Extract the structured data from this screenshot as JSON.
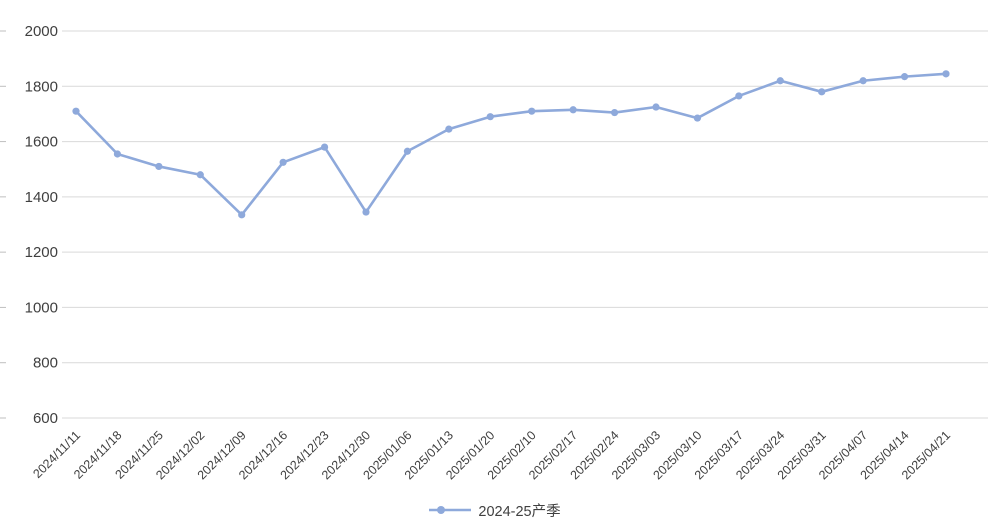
{
  "chart_data": {
    "type": "line",
    "title": "",
    "xlabel": "",
    "ylabel": "",
    "categories": [
      "2024/11/11",
      "2024/11/18",
      "2024/11/25",
      "2024/12/02",
      "2024/12/09",
      "2024/12/16",
      "2024/12/23",
      "2024/12/30",
      "2025/01/06",
      "2025/01/13",
      "2025/01/20",
      "2025/02/10",
      "2025/02/17",
      "2025/02/24",
      "2025/03/03",
      "2025/03/10",
      "2025/03/17",
      "2025/03/24",
      "2025/03/31",
      "2025/04/07",
      "2025/04/14",
      "2025/04/21"
    ],
    "series": [
      {
        "name": "2024-25产季",
        "values": [
          1710,
          1555,
          1510,
          1480,
          1335,
          1525,
          1580,
          1345,
          1565,
          1645,
          1690,
          1710,
          1715,
          1705,
          1725,
          1685,
          1765,
          1820,
          1780,
          1820,
          1835,
          1845
        ]
      }
    ],
    "ylim": [
      600,
      2000
    ],
    "yticks": [
      600,
      800,
      1000,
      1200,
      1400,
      1600,
      1800,
      2000
    ],
    "grid": "horizontal-only",
    "legend_position": "bottom-center",
    "line_color": "#8EA9DB",
    "marker_color": "#8EA9DB",
    "grid_color": "#D9D9D9",
    "tick_color": "#BFBFBF",
    "axis_text_color": "#3f3f3f"
  }
}
